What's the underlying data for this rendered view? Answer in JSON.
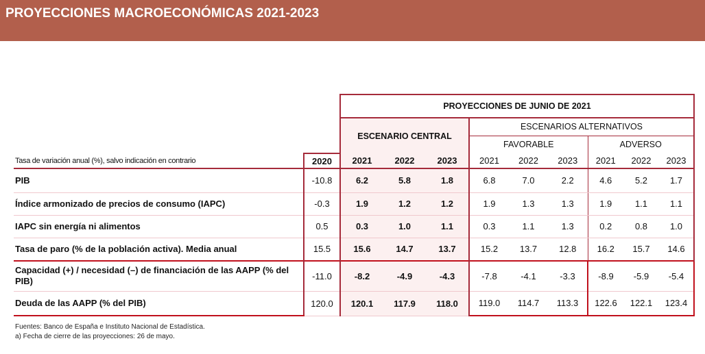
{
  "title": "PROYECCIONES MACROECONÓMICAS 2021-2023",
  "header": {
    "top": "PROYECCIONES DE JUNIO DE 2021",
    "central": "ESCENARIO CENTRAL",
    "alternatives": "ESCENARIOS ALTERNATIVOS",
    "favorable": "FAVORABLE",
    "adverse": "ADVERSO",
    "units_note": "Tasa de variación anual (%), salvo indicación en contrario",
    "years": [
      "2020",
      "2021",
      "2022",
      "2023",
      "2021",
      "2022",
      "2023",
      "2021",
      "2022",
      "2023"
    ]
  },
  "rows": [
    {
      "label": "PIB",
      "values": [
        "-10.8",
        "6.2",
        "5.8",
        "1.8",
        "6.8",
        "7.0",
        "2.2",
        "4.6",
        "5.2",
        "1.7"
      ]
    },
    {
      "label": "Índice armonizado de precios de consumo (IAPC)",
      "values": [
        "-0.3",
        "1.9",
        "1.2",
        "1.2",
        "1.9",
        "1.3",
        "1.3",
        "1.9",
        "1.1",
        "1.1"
      ]
    },
    {
      "label": "IAPC sin energía ni alimentos",
      "values": [
        "0.5",
        "0.3",
        "1.0",
        "1.1",
        "0.3",
        "1.1",
        "1.3",
        "0.2",
        "0.8",
        "1.0"
      ]
    },
    {
      "label": "Tasa de paro (% de la población activa). Media anual",
      "values": [
        "15.5",
        "15.6",
        "14.7",
        "13.7",
        "15.2",
        "13.7",
        "12.8",
        "16.2",
        "15.7",
        "14.6"
      ]
    },
    {
      "label": "Capacidad (+) / necesidad (–) de financiación de las AAPP (% del PIB)",
      "values": [
        "-11.0",
        "-8.2",
        "-4.9",
        "-4.3",
        "-7.8",
        "-4.1",
        "-3.3",
        "-8.9",
        "-5.9",
        "-5.4"
      ]
    },
    {
      "label": "Deuda de las AAPP (% del PIB)",
      "values": [
        "120.0",
        "120.1",
        "117.9",
        "118.0",
        "119.0",
        "114.7",
        "113.3",
        "122.6",
        "122.1",
        "123.4"
      ]
    }
  ],
  "notes": [
    "Fuentes: Banco de España e Instituto Nacional de Estadística.",
    "a) Fecha de cierre de las proyecciones: 26 de mayo."
  ],
  "colors": {
    "banner": "#b25f4c",
    "border": "#a52a3a",
    "central_bg": "#fcf0f0"
  }
}
